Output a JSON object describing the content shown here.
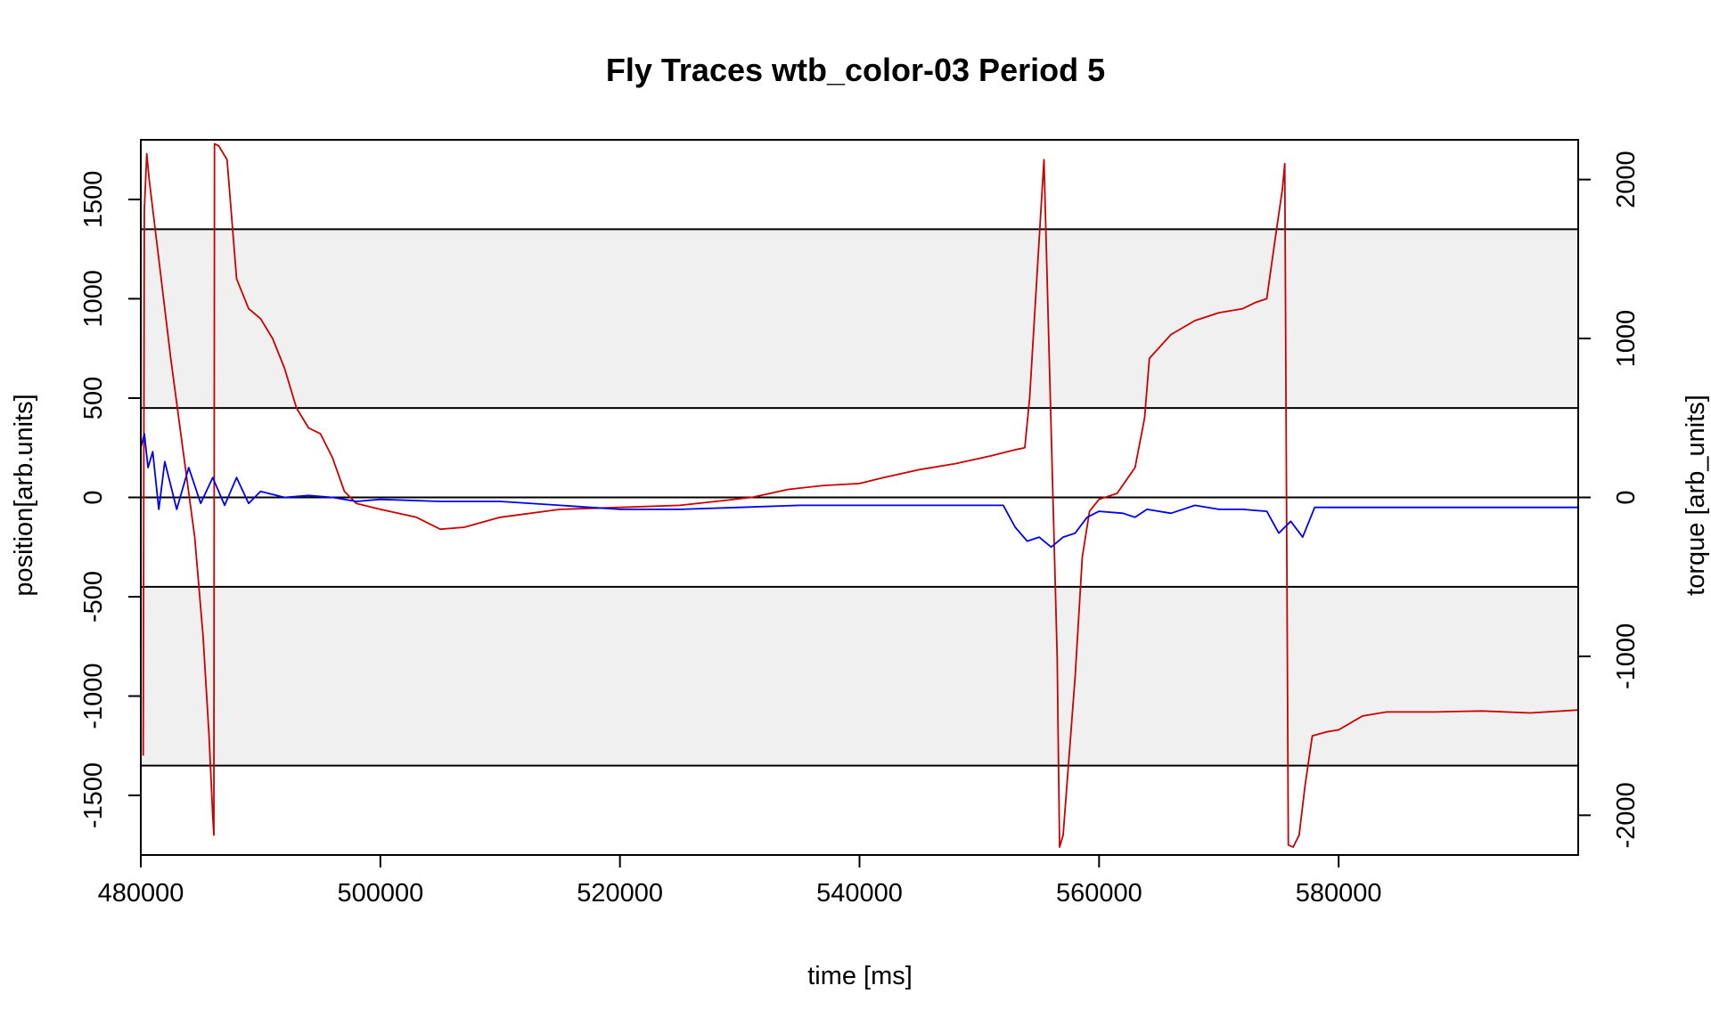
{
  "chart_data": {
    "type": "line",
    "title": "Fly Traces wtb_color-03 Period 5",
    "xlabel": "time [ms]",
    "ylabel_left": "position[arb.units]",
    "ylabel_right": "torque [arb_units]",
    "xlim": [
      480000,
      600000
    ],
    "ylim_left": [
      -1800,
      1800
    ],
    "ylim_right": [
      -2250,
      2250
    ],
    "x_ticks": [
      480000,
      500000,
      520000,
      540000,
      560000,
      580000
    ],
    "x_tick_labels": [
      "480000",
      "500000",
      "520000",
      "540000",
      "560000",
      "580000"
    ],
    "y_left_ticks": [
      -1500,
      -1000,
      -500,
      0,
      500,
      1000,
      1500
    ],
    "y_left_tick_labels": [
      "-1500",
      "-1000",
      "-500",
      "0",
      "500",
      "1000",
      "1500"
    ],
    "y_right_ticks": [
      -2000,
      -1000,
      0,
      1000,
      2000
    ],
    "y_right_tick_labels": [
      "-2000",
      "-1000",
      "0",
      "1000",
      "2000"
    ],
    "grid": false,
    "shaded_bands": [
      {
        "y_range": [
          450,
          1350
        ],
        "color": "#f0f0f0"
      },
      {
        "y_range": [
          -1350,
          -450
        ],
        "color": "#f0f0f0"
      }
    ],
    "reference_lines_y": [
      -1350,
      -450,
      0,
      450,
      1350
    ],
    "series": [
      {
        "axis": "left",
        "color": "#cc0000",
        "points": [
          [
            480200,
            -1300
          ],
          [
            480300,
            1450
          ],
          [
            480500,
            1730
          ],
          [
            480700,
            1600
          ],
          [
            481500,
            1200
          ],
          [
            482500,
            700
          ],
          [
            483500,
            250
          ],
          [
            484500,
            -200
          ],
          [
            485200,
            -700
          ],
          [
            485700,
            -1200
          ],
          [
            486000,
            -1600
          ],
          [
            486100,
            -1700
          ],
          [
            486150,
            1780
          ],
          [
            486500,
            1770
          ],
          [
            487200,
            1700
          ],
          [
            488000,
            1100
          ],
          [
            489000,
            950
          ],
          [
            490000,
            900
          ],
          [
            491000,
            800
          ],
          [
            492000,
            650
          ],
          [
            493000,
            450
          ],
          [
            494000,
            350
          ],
          [
            495000,
            320
          ],
          [
            496000,
            200
          ],
          [
            497000,
            30
          ],
          [
            498000,
            -30
          ],
          [
            500000,
            -60
          ],
          [
            503000,
            -100
          ],
          [
            505000,
            -160
          ],
          [
            507000,
            -150
          ],
          [
            510000,
            -100
          ],
          [
            515000,
            -60
          ],
          [
            520000,
            -50
          ],
          [
            525000,
            -40
          ],
          [
            528000,
            -20
          ],
          [
            531000,
            0
          ],
          [
            534000,
            40
          ],
          [
            537000,
            60
          ],
          [
            540000,
            70
          ],
          [
            542000,
            100
          ],
          [
            545000,
            140
          ],
          [
            548000,
            170
          ],
          [
            551000,
            210
          ],
          [
            553000,
            240
          ],
          [
            553800,
            250
          ],
          [
            554200,
            500
          ],
          [
            554700,
            1000
          ],
          [
            555200,
            1500
          ],
          [
            555400,
            1700
          ],
          [
            556500,
            -800
          ],
          [
            556700,
            -1760
          ],
          [
            557000,
            -1700
          ],
          [
            558000,
            -900
          ],
          [
            558600,
            -300
          ],
          [
            559200,
            -70
          ],
          [
            560000,
            -10
          ],
          [
            561500,
            20
          ],
          [
            563000,
            150
          ],
          [
            563800,
            400
          ],
          [
            564200,
            700
          ],
          [
            566000,
            820
          ],
          [
            568000,
            890
          ],
          [
            570000,
            930
          ],
          [
            572000,
            950
          ],
          [
            573000,
            980
          ],
          [
            574000,
            1000
          ],
          [
            574700,
            1300
          ],
          [
            575300,
            1550
          ],
          [
            575500,
            1680
          ],
          [
            575800,
            -1750
          ],
          [
            576200,
            -1760
          ],
          [
            576700,
            -1700
          ],
          [
            577200,
            -1450
          ],
          [
            577800,
            -1200
          ],
          [
            579000,
            -1180
          ],
          [
            580000,
            -1170
          ],
          [
            582000,
            -1100
          ],
          [
            584000,
            -1080
          ],
          [
            588000,
            -1080
          ],
          [
            592000,
            -1075
          ],
          [
            596000,
            -1085
          ],
          [
            600000,
            -1070
          ]
        ]
      },
      {
        "axis": "left",
        "color": "#0000ee",
        "points": [
          [
            480000,
            250
          ],
          [
            480300,
            320
          ],
          [
            480600,
            150
          ],
          [
            481000,
            230
          ],
          [
            481500,
            -60
          ],
          [
            482000,
            180
          ],
          [
            483000,
            -60
          ],
          [
            484000,
            150
          ],
          [
            485000,
            -30
          ],
          [
            486000,
            100
          ],
          [
            487000,
            -40
          ],
          [
            488000,
            100
          ],
          [
            489000,
            -30
          ],
          [
            490000,
            30
          ],
          [
            492000,
            0
          ],
          [
            494000,
            10
          ],
          [
            496000,
            0
          ],
          [
            498000,
            -20
          ],
          [
            500000,
            -10
          ],
          [
            505000,
            -20
          ],
          [
            510000,
            -20
          ],
          [
            515000,
            -40
          ],
          [
            520000,
            -60
          ],
          [
            525000,
            -60
          ],
          [
            530000,
            -50
          ],
          [
            535000,
            -40
          ],
          [
            540000,
            -40
          ],
          [
            545000,
            -40
          ],
          [
            550000,
            -40
          ],
          [
            552000,
            -40
          ],
          [
            553000,
            -150
          ],
          [
            554000,
            -220
          ],
          [
            555000,
            -200
          ],
          [
            556000,
            -250
          ],
          [
            557000,
            -200
          ],
          [
            558000,
            -180
          ],
          [
            559000,
            -100
          ],
          [
            560000,
            -70
          ],
          [
            562000,
            -80
          ],
          [
            563000,
            -100
          ],
          [
            564000,
            -60
          ],
          [
            566000,
            -80
          ],
          [
            568000,
            -40
          ],
          [
            570000,
            -60
          ],
          [
            572000,
            -60
          ],
          [
            574000,
            -70
          ],
          [
            575000,
            -180
          ],
          [
            576000,
            -120
          ],
          [
            577000,
            -200
          ],
          [
            578000,
            -50
          ],
          [
            580000,
            -50
          ],
          [
            585000,
            -50
          ],
          [
            590000,
            -50
          ],
          [
            595000,
            -50
          ],
          [
            600000,
            -50
          ]
        ]
      }
    ]
  }
}
